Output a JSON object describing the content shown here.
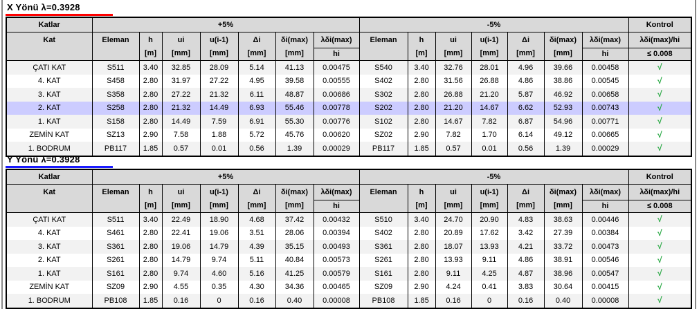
{
  "labels": {
    "katlar": "Katlar",
    "kat": "Kat",
    "plus5": "+5%",
    "minus5": "-5%",
    "kontrol": "Kontrol",
    "eleman": "Eleman",
    "h": "h",
    "unit_m": "[m]",
    "ui": "ui",
    "u_prev": "u(i-1)",
    "delta_i": "Δi",
    "delta_max": "δi(max)",
    "unit_mm": "[mm]",
    "frac_num": "λδi(max)",
    "frac_den": "hi",
    "kontrol_num": "λδi(max)/hi",
    "kontrol_den": "≤ 0.008",
    "check": "√"
  },
  "colors": {
    "header_bg": "#d9d9d9",
    "row_stripe": "#f2f2f2",
    "row_highlight": "#ccccff",
    "check_green": "#2aa945",
    "x_underline": "#ff0000",
    "y_underline": "#1a1aff"
  },
  "tables": [
    {
      "name": "x-direction",
      "title": "X Yönü λ=0.3928",
      "underline": "#ff0000",
      "rows": [
        {
          "kat": "ÇATI KAT",
          "plus": [
            "S511",
            "3.40",
            "32.85",
            "28.09",
            "5.14",
            "41.13",
            "0.00475"
          ],
          "minus": [
            "S540",
            "3.40",
            "32.76",
            "28.01",
            "4.96",
            "39.66",
            "0.00458"
          ],
          "highlight": false
        },
        {
          "kat": "4. KAT",
          "plus": [
            "S458",
            "2.80",
            "31.97",
            "27.22",
            "4.95",
            "39.58",
            "0.00555"
          ],
          "minus": [
            "S402",
            "2.80",
            "31.56",
            "26.88",
            "4.86",
            "38.86",
            "0.00545"
          ],
          "highlight": false
        },
        {
          "kat": "3. KAT",
          "plus": [
            "S358",
            "2.80",
            "27.22",
            "21.32",
            "6.11",
            "48.87",
            "0.00686"
          ],
          "minus": [
            "S302",
            "2.80",
            "26.88",
            "21.20",
            "5.87",
            "46.92",
            "0.00658"
          ],
          "highlight": false
        },
        {
          "kat": "2. KAT",
          "plus": [
            "S258",
            "2.80",
            "21.32",
            "14.49",
            "6.93",
            "55.46",
            "0.00778"
          ],
          "minus": [
            "S202",
            "2.80",
            "21.20",
            "14.67",
            "6.62",
            "52.93",
            "0.00743"
          ],
          "highlight": true
        },
        {
          "kat": "1. KAT",
          "plus": [
            "S158",
            "2.80",
            "14.49",
            "7.59",
            "6.91",
            "55.30",
            "0.00776"
          ],
          "minus": [
            "S102",
            "2.80",
            "14.67",
            "7.82",
            "6.87",
            "54.96",
            "0.00771"
          ],
          "highlight": false
        },
        {
          "kat": "ZEMİN KAT",
          "plus": [
            "SZ13",
            "2.90",
            "7.58",
            "1.88",
            "5.72",
            "45.76",
            "0.00620"
          ],
          "minus": [
            "SZ02",
            "2.90",
            "7.82",
            "1.70",
            "6.14",
            "49.12",
            "0.00665"
          ],
          "highlight": false
        },
        {
          "kat": "1. BODRUM",
          "plus": [
            "PB117",
            "1.85",
            "0.57",
            "0.01",
            "0.56",
            "1.39",
            "0.00029"
          ],
          "minus": [
            "PB117",
            "1.85",
            "0.57",
            "0.01",
            "0.56",
            "1.39",
            "0.00029"
          ],
          "highlight": false
        }
      ]
    },
    {
      "name": "y-direction",
      "title": "Y Yönü λ=0.3928",
      "underline": "#1a1aff",
      "rows": [
        {
          "kat": "ÇATI KAT",
          "plus": [
            "S511",
            "3.40",
            "22.49",
            "18.90",
            "4.68",
            "37.42",
            "0.00432"
          ],
          "minus": [
            "S510",
            "3.40",
            "24.70",
            "20.90",
            "4.83",
            "38.63",
            "0.00446"
          ],
          "highlight": false
        },
        {
          "kat": "4. KAT",
          "plus": [
            "S461",
            "2.80",
            "22.41",
            "19.06",
            "3.51",
            "28.06",
            "0.00394"
          ],
          "minus": [
            "S402",
            "2.80",
            "20.89",
            "17.62",
            "3.42",
            "27.39",
            "0.00384"
          ],
          "highlight": false
        },
        {
          "kat": "3. KAT",
          "plus": [
            "S361",
            "2.80",
            "19.06",
            "14.79",
            "4.39",
            "35.15",
            "0.00493"
          ],
          "minus": [
            "S361",
            "2.80",
            "18.07",
            "13.93",
            "4.21",
            "33.72",
            "0.00473"
          ],
          "highlight": false
        },
        {
          "kat": "2. KAT",
          "plus": [
            "S261",
            "2.80",
            "14.79",
            "9.74",
            "5.11",
            "40.84",
            "0.00573"
          ],
          "minus": [
            "S261",
            "2.80",
            "13.93",
            "9.11",
            "4.86",
            "38.91",
            "0.00546"
          ],
          "highlight": false
        },
        {
          "kat": "1. KAT",
          "plus": [
            "S161",
            "2.80",
            "9.74",
            "4.60",
            "5.16",
            "41.25",
            "0.00579"
          ],
          "minus": [
            "S161",
            "2.80",
            "9.11",
            "4.25",
            "4.87",
            "38.96",
            "0.00547"
          ],
          "highlight": false
        },
        {
          "kat": "ZEMİN KAT",
          "plus": [
            "SZ09",
            "2.90",
            "4.55",
            "0.35",
            "4.30",
            "34.36",
            "0.00465"
          ],
          "minus": [
            "SZ09",
            "2.90",
            "4.24",
            "0.41",
            "3.83",
            "30.64",
            "0.00415"
          ],
          "highlight": false
        },
        {
          "kat": "1. BODRUM",
          "plus": [
            "PB108",
            "1.85",
            "0.16",
            "0",
            "0.16",
            "0.40",
            "0.00008"
          ],
          "minus": [
            "PB108",
            "1.85",
            "0.16",
            "0",
            "0.16",
            "0.40",
            "0.00008"
          ],
          "highlight": false
        }
      ]
    }
  ]
}
